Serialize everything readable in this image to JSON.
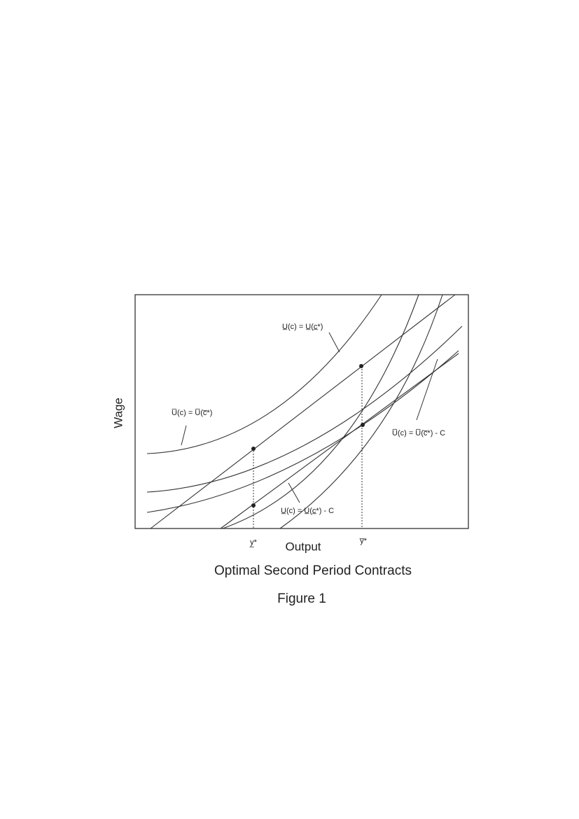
{
  "figure": {
    "y_label": "Wage",
    "x_label": "Output",
    "ticks": [
      "y̲*",
      "y̅*"
    ],
    "curve_labels": [
      "U̅(c) = U̅(c̅*)",
      "U̲(c) = U̲(c̲*)",
      "U̅(c) = U̅(c̅*) - C",
      "U̲(c) = U̲(c̲*) - C"
    ],
    "caption": "Optimal Second Period Contracts",
    "number": "Figure 1"
  }
}
